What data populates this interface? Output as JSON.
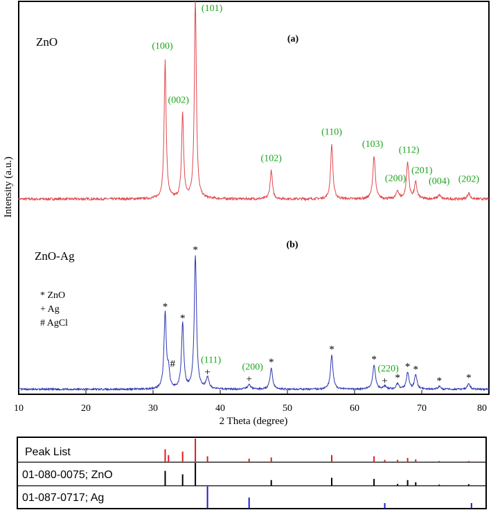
{
  "chart_data": {
    "type": "line",
    "xlabel": "2 Theta (degree)",
    "ylabel": "Intensity (a.u.)",
    "xlim": [
      10,
      80
    ],
    "xticks": [
      10,
      20,
      30,
      40,
      50,
      60,
      70,
      80
    ],
    "grid": false,
    "colors": {
      "zno": "#e0474c",
      "znoag": "#2b35b0",
      "hkl": "#1aa31a",
      "ref_peak_list": "#e01b1b",
      "ref_zno": "#000000",
      "ref_ag": "#1a1ad6"
    },
    "series": [
      {
        "name": "ZnO",
        "panel_label": "(a)",
        "baseline": 0.03,
        "peaks": [
          {
            "x": 31.8,
            "height": 0.68,
            "width": 0.18,
            "label": "(100)"
          },
          {
            "x": 34.4,
            "height": 0.42,
            "width": 0.18,
            "label": "(002)"
          },
          {
            "x": 36.3,
            "height": 0.98,
            "width": 0.18,
            "label": "(101)"
          },
          {
            "x": 47.6,
            "height": 0.14,
            "width": 0.2,
            "label": "(102)"
          },
          {
            "x": 56.6,
            "height": 0.27,
            "width": 0.2,
            "label": "(110)"
          },
          {
            "x": 62.9,
            "height": 0.21,
            "width": 0.22,
            "label": "(103)"
          },
          {
            "x": 66.4,
            "height": 0.04,
            "width": 0.22,
            "label": "(200)"
          },
          {
            "x": 67.9,
            "height": 0.18,
            "width": 0.22,
            "label": "(112)"
          },
          {
            "x": 69.1,
            "height": 0.08,
            "width": 0.22,
            "label": "(201)"
          },
          {
            "x": 72.6,
            "height": 0.02,
            "width": 0.22,
            "label": "(004)"
          },
          {
            "x": 77.0,
            "height": 0.03,
            "width": 0.22,
            "label": "(202)"
          }
        ]
      },
      {
        "name": "ZnO-Ag",
        "panel_label": "(b)",
        "baseline": 0.03,
        "peaks": [
          {
            "x": 31.8,
            "height": 0.54,
            "width": 0.2,
            "marker": "*"
          },
          {
            "x": 32.3,
            "height": 0.12,
            "width": 0.18,
            "marker": "#"
          },
          {
            "x": 34.4,
            "height": 0.46,
            "width": 0.2,
            "marker": "*"
          },
          {
            "x": 36.3,
            "height": 0.94,
            "width": 0.2,
            "marker": "*"
          },
          {
            "x": 38.1,
            "height": 0.08,
            "width": 0.25,
            "marker": "+",
            "label": "(111)"
          },
          {
            "x": 44.3,
            "height": 0.03,
            "width": 0.3,
            "marker": "+",
            "label": "(200)"
          },
          {
            "x": 47.6,
            "height": 0.15,
            "width": 0.22,
            "marker": "*"
          },
          {
            "x": 56.6,
            "height": 0.24,
            "width": 0.22,
            "marker": "*"
          },
          {
            "x": 62.9,
            "height": 0.17,
            "width": 0.24,
            "marker": "*"
          },
          {
            "x": 64.5,
            "height": 0.02,
            "width": 0.3,
            "marker": "+",
            "label": "(220)"
          },
          {
            "x": 66.4,
            "height": 0.04,
            "width": 0.22,
            "marker": "*"
          },
          {
            "x": 67.9,
            "height": 0.12,
            "width": 0.22,
            "marker": "*"
          },
          {
            "x": 69.1,
            "height": 0.1,
            "width": 0.22,
            "marker": "*"
          },
          {
            "x": 72.6,
            "height": 0.02,
            "width": 0.22,
            "marker": "*"
          },
          {
            "x": 77.0,
            "height": 0.04,
            "width": 0.22,
            "marker": "*"
          }
        ]
      }
    ],
    "legend": [
      "* ZnO",
      "+ Ag",
      "# AgCl"
    ],
    "reference_panels": [
      {
        "label": "Peak List",
        "color": "#e01b1b",
        "lines": [
          [
            31.8,
            0.55
          ],
          [
            32.3,
            0.3
          ],
          [
            34.4,
            0.45
          ],
          [
            36.3,
            1.0
          ],
          [
            38.1,
            0.25
          ],
          [
            44.3,
            0.15
          ],
          [
            47.6,
            0.2
          ],
          [
            56.6,
            0.3
          ],
          [
            62.9,
            0.25
          ],
          [
            64.5,
            0.1
          ],
          [
            66.4,
            0.1
          ],
          [
            67.9,
            0.18
          ],
          [
            69.1,
            0.12
          ],
          [
            72.6,
            0.05
          ],
          [
            77.0,
            0.05
          ]
        ]
      },
      {
        "label": "01-080-0075; ZnO",
        "color": "#000000",
        "lines": [
          [
            31.8,
            0.65
          ],
          [
            34.4,
            0.5
          ],
          [
            36.3,
            1.0
          ],
          [
            47.6,
            0.25
          ],
          [
            56.6,
            0.35
          ],
          [
            62.9,
            0.3
          ],
          [
            66.4,
            0.08
          ],
          [
            67.9,
            0.25
          ],
          [
            69.1,
            0.15
          ],
          [
            72.6,
            0.05
          ],
          [
            77.0,
            0.07
          ]
        ]
      },
      {
        "label": "01-087-0717; Ag",
        "color": "#1a1ad6",
        "lines": [
          [
            38.1,
            1.0
          ],
          [
            44.3,
            0.5
          ],
          [
            64.5,
            0.25
          ],
          [
            77.4,
            0.25
          ]
        ]
      }
    ]
  }
}
